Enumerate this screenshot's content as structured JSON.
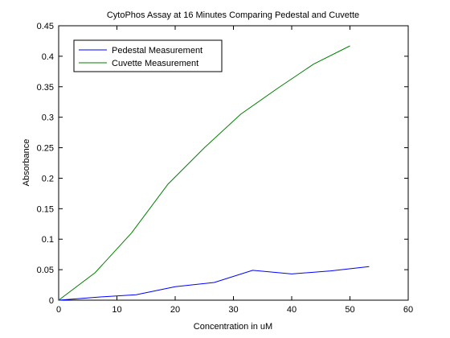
{
  "chart_data": {
    "type": "line",
    "title": "CytoPhos Assay at 16 Minutes Comparing Pedestal and Cuvette",
    "xlabel": "Concentration in uM",
    "ylabel": "Absorbance",
    "xlim": [
      0,
      60
    ],
    "ylim": [
      0,
      0.45
    ],
    "xticks": [
      0,
      10,
      20,
      30,
      40,
      50,
      60
    ],
    "xtick_labels": [
      "0",
      "10",
      "20",
      "30",
      "40",
      "50",
      "60"
    ],
    "yticks": [
      0,
      0.05,
      0.1,
      0.15,
      0.2,
      0.25,
      0.3,
      0.35,
      0.4,
      0.45
    ],
    "ytick_labels": [
      "0",
      "0.05",
      "0.1",
      "0.15",
      "0.2",
      "0.25",
      "0.3",
      "0.35",
      "0.4",
      "0.45"
    ],
    "grid": false,
    "legend_position": "top-left",
    "series": [
      {
        "name": "Pedestal Measurement",
        "color": "#0000ff",
        "x": [
          0,
          6.7,
          13.3,
          20,
          26.7,
          33.3,
          40,
          46.7,
          53.3
        ],
        "y": [
          0,
          0.005,
          0.009,
          0.022,
          0.029,
          0.049,
          0.043,
          0.048,
          0.055
        ]
      },
      {
        "name": "Cuvette Measurement",
        "color": "#007f00",
        "x": [
          0,
          6.25,
          12.5,
          18.75,
          25,
          31.25,
          37.5,
          43.75,
          50
        ],
        "y": [
          0,
          0.045,
          0.11,
          0.19,
          0.25,
          0.305,
          0.347,
          0.387,
          0.417
        ]
      }
    ]
  }
}
